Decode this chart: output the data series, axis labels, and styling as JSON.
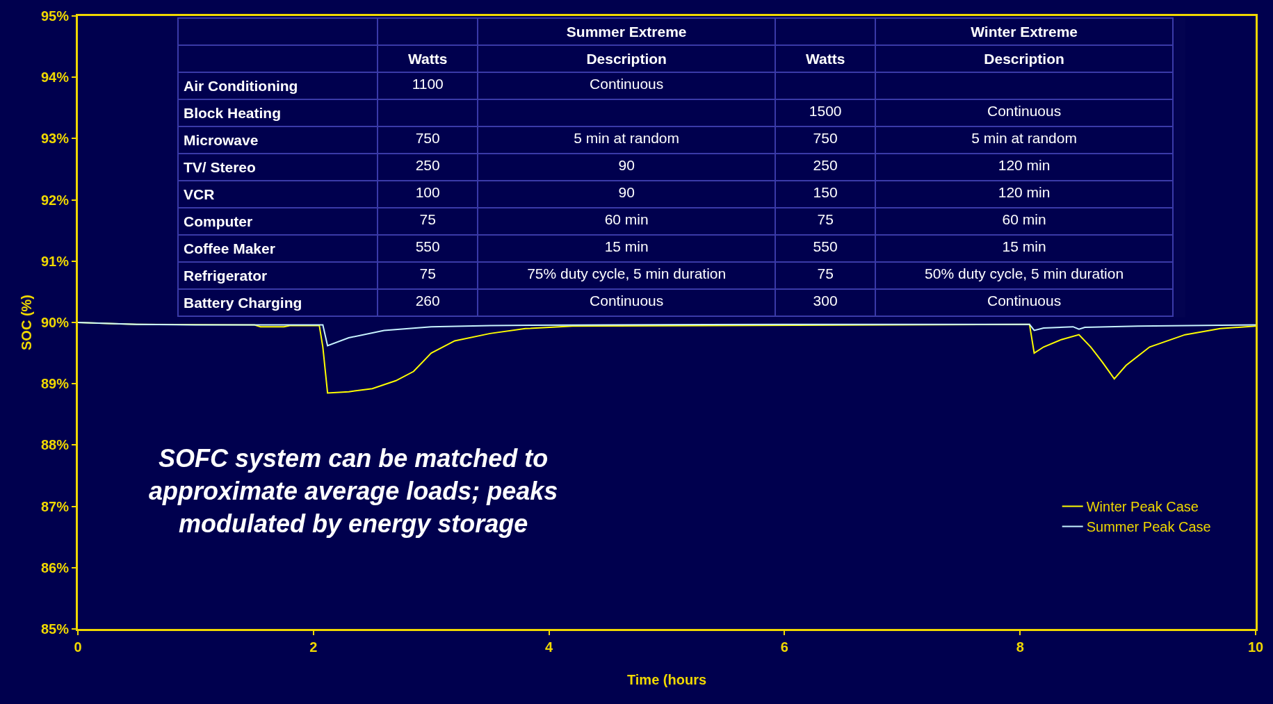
{
  "chart_data": [
    {
      "type": "line",
      "xlabel": "Time (hours",
      "ylabel": "SOC (%)",
      "xlim": [
        0,
        10
      ],
      "xticks": [
        0,
        2,
        4,
        6,
        8,
        10
      ],
      "ylim": [
        85,
        95
      ],
      "yticks": [
        {
          "value": 85,
          "label": "85%"
        },
        {
          "value": 86,
          "label": "86%"
        },
        {
          "value": 87,
          "label": "87%"
        },
        {
          "value": 88,
          "label": "88%"
        },
        {
          "value": 89,
          "label": "89%"
        },
        {
          "value": 90,
          "label": "90%"
        },
        {
          "value": 91,
          "label": "91%"
        },
        {
          "value": 92,
          "label": "92%"
        },
        {
          "value": 93,
          "label": "93%"
        },
        {
          "value": 94,
          "label": "94%"
        },
        {
          "value": 95,
          "label": "95%"
        }
      ],
      "grid": false,
      "legend": "bottom right",
      "marker": "none",
      "line_style": "solid",
      "series": [
        {
          "name": "Winter Peak Case",
          "color": "#ffff00",
          "x": [
            0,
            0.3,
            0.5,
            1.5,
            1.55,
            1.75,
            1.8,
            2.05,
            2.08,
            2.12,
            2.3,
            2.5,
            2.7,
            2.85,
            3.0,
            3.2,
            3.5,
            3.8,
            4.2,
            8.08,
            8.12,
            8.2,
            8.35,
            8.5,
            8.6,
            8.7,
            8.8,
            8.9,
            9.1,
            9.4,
            9.7,
            10
          ],
          "values": [
            90.0,
            89.98,
            89.97,
            89.96,
            89.93,
            89.93,
            89.95,
            89.95,
            89.6,
            88.85,
            88.87,
            88.92,
            89.05,
            89.2,
            89.5,
            89.7,
            89.82,
            89.9,
            89.94,
            89.97,
            89.5,
            89.6,
            89.72,
            89.8,
            89.6,
            89.35,
            89.08,
            89.3,
            89.6,
            89.8,
            89.9,
            89.94
          ]
        },
        {
          "name": "Summer Peak Case",
          "color": "#c8f4ff",
          "x": [
            0,
            0.5,
            1.0,
            2.08,
            2.12,
            2.3,
            2.6,
            3.0,
            3.5,
            4.5,
            6.0,
            8.08,
            8.12,
            8.2,
            8.45,
            8.5,
            8.55,
            9.0,
            10
          ],
          "values": [
            90.0,
            89.97,
            89.96,
            89.96,
            89.62,
            89.75,
            89.87,
            89.93,
            89.95,
            89.96,
            89.97,
            89.97,
            89.87,
            89.91,
            89.93,
            89.89,
            89.92,
            89.94,
            89.96
          ]
        }
      ],
      "annotations": [
        {
          "text": "SOFC system can be matched to\napproximate average loads; peaks\nmodulated by energy storage"
        }
      ]
    },
    {
      "type": "other",
      "cells": [
        [
          null,
          null,
          "Summer Extreme",
          null,
          "Winter Extreme"
        ],
        [
          null,
          "Watts",
          "Description",
          "Watts",
          "Description"
        ],
        [
          "Air Conditioning",
          "1100",
          "Continuous",
          null,
          null
        ],
        [
          "Block Heating",
          null,
          null,
          "1500",
          "Continuous"
        ],
        [
          "Microwave",
          "750",
          "5 min at random",
          "750",
          "5 min at random"
        ],
        [
          "TV/ Stereo",
          "250",
          "90",
          "250",
          "120 min"
        ],
        [
          "VCR",
          "100",
          "90",
          "150",
          "120 min"
        ],
        [
          "Computer",
          "75",
          "60 min",
          "75",
          "60 min"
        ],
        [
          "Coffee Maker",
          "550",
          "15 min",
          "550",
          "15 min"
        ],
        [
          "Refrigerator",
          "75",
          "75% duty cycle, 5 min duration",
          "75",
          "50% duty cycle, 5 min duration"
        ],
        [
          "Battery Charging",
          "260",
          "Continuous",
          "300",
          "Continuous"
        ]
      ]
    }
  ]
}
